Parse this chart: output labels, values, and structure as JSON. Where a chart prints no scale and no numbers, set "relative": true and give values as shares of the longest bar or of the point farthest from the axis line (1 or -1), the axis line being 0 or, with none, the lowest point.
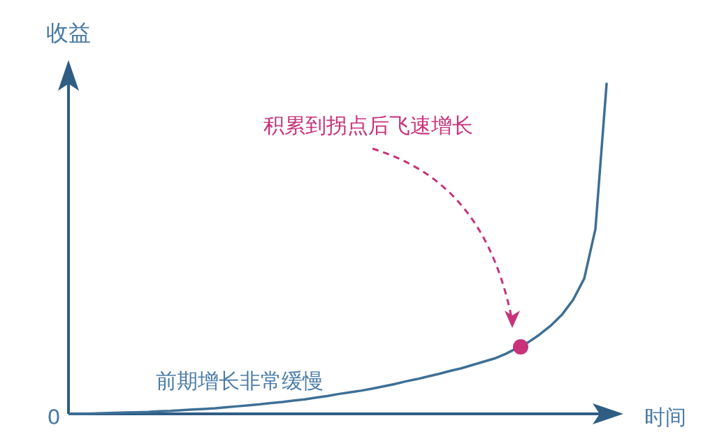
{
  "chart_data": {
    "type": "line",
    "relative": true,
    "xlabel": "时间",
    "ylabel": "收益",
    "categories": [
      null,
      null,
      null,
      null,
      null,
      null,
      null,
      null,
      null,
      null,
      null,
      null,
      null,
      null,
      null,
      null,
      null,
      null,
      null,
      null,
      null,
      null,
      null,
      null,
      null,
      null,
      null,
      null,
      null,
      null,
      null,
      null,
      null,
      null,
      null,
      null,
      null,
      null,
      null,
      null,
      null,
      null,
      null,
      null,
      null,
      null,
      null,
      null,
      null
    ],
    "series": [
      {
        "color": "#3d6f96",
        "values": [
          0,
          0,
          0.001,
          0.002,
          0.003,
          0.004,
          0.005,
          0.006,
          0.008,
          0.009,
          0.011,
          0.013,
          0.015,
          0.017,
          0.02,
          0.023,
          0.026,
          0.029,
          0.033,
          0.036,
          0.04,
          0.044,
          0.049,
          0.054,
          0.06,
          0.065,
          0.07,
          0.076,
          0.083,
          0.09,
          0.098,
          0.105,
          0.113,
          0.121,
          0.13,
          0.138,
          0.148,
          0.158,
          0.168,
          0.182,
          null,
          0.217,
          0.24,
          0.267,
          0.3,
          0.345,
          0.41,
          0.56,
          1
        ]
      }
    ],
    "annotations": [
      "积累到拐点后飞速增长",
      "前期增长非常缓慢",
      "0"
    ]
  }
}
